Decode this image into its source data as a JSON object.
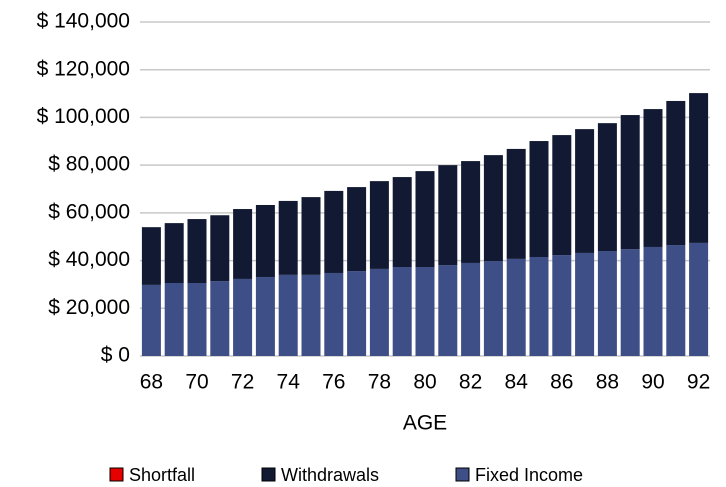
{
  "chart_data": {
    "type": "stacked_bar",
    "x_label": "AGE",
    "categories": [
      "68",
      null,
      "70",
      null,
      "72",
      null,
      "74",
      null,
      "76",
      null,
      "78",
      null,
      "80",
      null,
      "82",
      null,
      "84",
      null,
      "86",
      null,
      "88",
      null,
      "90",
      null,
      "92"
    ],
    "series": [
      {
        "name": "Shortfall",
        "color": "#e60000",
        "values": [
          0,
          0,
          0,
          0,
          0,
          0,
          0,
          0,
          0,
          0,
          0,
          0,
          0,
          0,
          0,
          0,
          0,
          0,
          0,
          0,
          0,
          0,
          0,
          0,
          0
        ]
      },
      {
        "name": "Withdrawals",
        "color": "#121a33",
        "values": [
          24200,
          25100,
          26800,
          27600,
          29300,
          30200,
          31000,
          32600,
          34400,
          35200,
          36800,
          37700,
          40200,
          41900,
          42700,
          44400,
          46100,
          48600,
          50300,
          51900,
          53600,
          56200,
          57800,
          60400,
          62800
        ]
      },
      {
        "name": "Fixed Income",
        "color": "#3e4e86",
        "values": [
          29800,
          30600,
          30600,
          31400,
          32300,
          33100,
          34000,
          34000,
          34800,
          35600,
          36500,
          37300,
          37300,
          38100,
          39000,
          39800,
          40700,
          41500,
          42300,
          43200,
          44000,
          44800,
          45700,
          46500,
          47400
        ]
      }
    ],
    "ylim": [
      0,
      140000
    ],
    "yticks": [
      {
        "value": 0,
        "label": "$ 0"
      },
      {
        "value": 20000,
        "label": "$ 20,000"
      },
      {
        "value": 40000,
        "label": "$ 40,000"
      },
      {
        "value": 60000,
        "label": "$ 60,000"
      },
      {
        "value": 80000,
        "label": "$ 80,000"
      },
      {
        "value": 100000,
        "label": "$ 100,000"
      },
      {
        "value": 120000,
        "label": "$ 120,000"
      },
      {
        "value": 140000,
        "label": "$ 140,000"
      }
    ],
    "grid": true
  }
}
